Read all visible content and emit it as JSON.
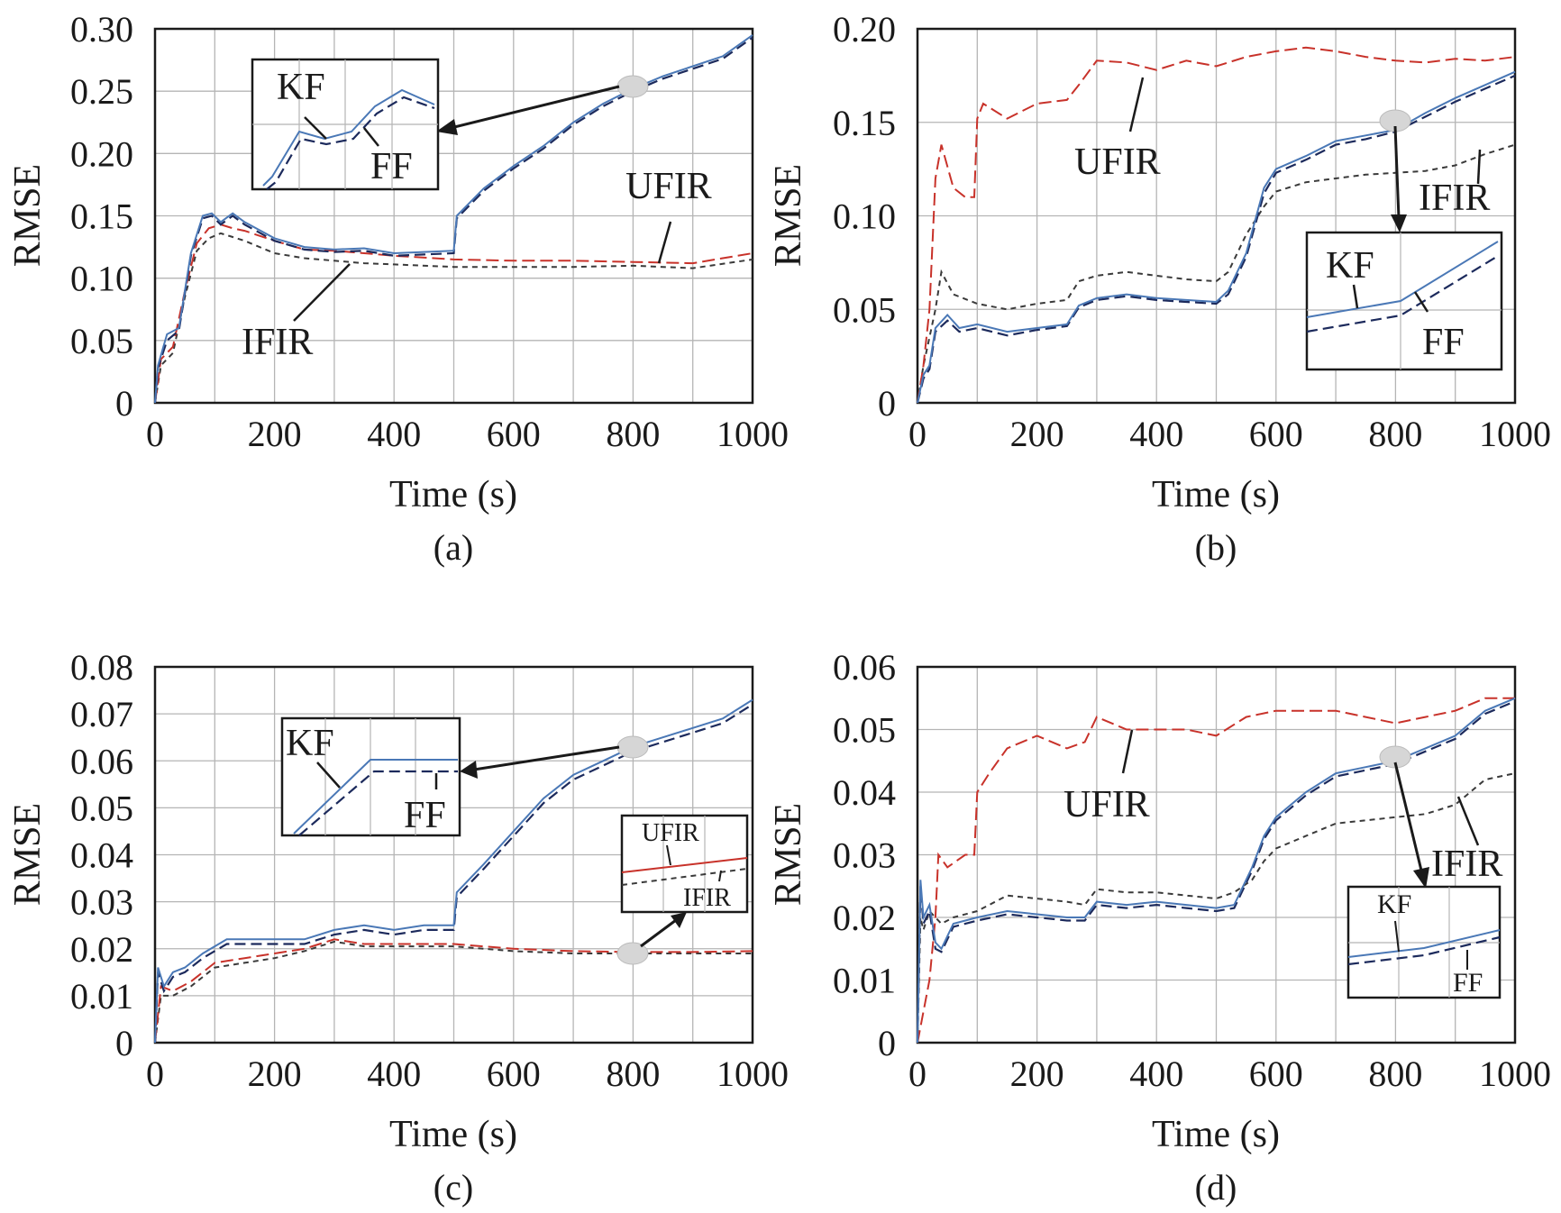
{
  "colors": {
    "kf": "#4a78b6",
    "ff": "#1c2a5c",
    "ufir": "#c8322a",
    "ifir": "#3a3a3a",
    "grid": "#b5b5b5"
  },
  "chart_data": [
    {
      "type": "line",
      "caption": "(a)",
      "xlabel": "Time (s)",
      "ylabel": "RMSE",
      "xlim": [
        0,
        1000
      ],
      "ylim": [
        0,
        0.3
      ],
      "xticks": [
        "0",
        "200",
        "400",
        "600",
        "800",
        "1000"
      ],
      "yticks": [
        "0",
        "0.05",
        "0.10",
        "0.15",
        "0.20",
        "0.25",
        "0.30"
      ],
      "grid": true,
      "series": [
        {
          "name": "KF",
          "x": [
            0,
            5,
            20,
            40,
            60,
            80,
            95,
            110,
            130,
            150,
            200,
            250,
            300,
            350,
            400,
            450,
            500,
            505,
            550,
            600,
            650,
            700,
            750,
            800,
            850,
            900,
            950,
            1000
          ],
          "y": [
            0,
            0.03,
            0.055,
            0.06,
            0.12,
            0.15,
            0.152,
            0.145,
            0.152,
            0.145,
            0.132,
            0.125,
            0.123,
            0.124,
            0.12,
            0.121,
            0.122,
            0.15,
            0.172,
            0.19,
            0.206,
            0.225,
            0.24,
            0.252,
            0.262,
            0.27,
            0.278,
            0.295
          ]
        },
        {
          "name": "FF",
          "x": [
            0,
            5,
            20,
            40,
            60,
            80,
            95,
            110,
            130,
            150,
            200,
            250,
            300,
            350,
            400,
            450,
            500,
            505,
            550,
            600,
            650,
            700,
            750,
            800,
            850,
            900,
            950,
            1000
          ],
          "y": [
            0,
            0.028,
            0.05,
            0.058,
            0.118,
            0.148,
            0.15,
            0.143,
            0.15,
            0.143,
            0.13,
            0.123,
            0.121,
            0.122,
            0.118,
            0.119,
            0.12,
            0.148,
            0.17,
            0.188,
            0.204,
            0.223,
            0.238,
            0.25,
            0.26,
            0.268,
            0.276,
            0.293
          ]
        },
        {
          "name": "UFIR",
          "x": [
            0,
            10,
            30,
            50,
            70,
            90,
            110,
            130,
            150,
            200,
            250,
            300,
            350,
            400,
            500,
            600,
            700,
            800,
            900,
            1000
          ],
          "y": [
            0,
            0.035,
            0.045,
            0.09,
            0.128,
            0.14,
            0.143,
            0.14,
            0.138,
            0.13,
            0.123,
            0.122,
            0.12,
            0.118,
            0.115,
            0.114,
            0.114,
            0.113,
            0.112,
            0.12
          ]
        },
        {
          "name": "IFIR",
          "x": [
            0,
            10,
            30,
            50,
            70,
            90,
            110,
            130,
            150,
            200,
            250,
            300,
            350,
            400,
            500,
            600,
            700,
            800,
            900,
            1000
          ],
          "y": [
            0,
            0.03,
            0.04,
            0.085,
            0.122,
            0.132,
            0.136,
            0.133,
            0.13,
            0.12,
            0.116,
            0.114,
            0.112,
            0.111,
            0.109,
            0.109,
            0.109,
            0.11,
            0.108,
            0.115
          ]
        }
      ],
      "labels": [
        "UFIR",
        "IFIR"
      ],
      "inset_labels": [
        "KF",
        "FF"
      ]
    },
    {
      "type": "line",
      "caption": "(b)",
      "xlabel": "Time (s)",
      "ylabel": "RMSE",
      "xlim": [
        0,
        1000
      ],
      "ylim": [
        0,
        0.2
      ],
      "xticks": [
        "0",
        "200",
        "400",
        "600",
        "800",
        "1000"
      ],
      "yticks": [
        "0",
        "0.05",
        "0.10",
        "0.15",
        "0.20"
      ],
      "grid": true,
      "series": [
        {
          "name": "KF",
          "x": [
            0,
            10,
            20,
            30,
            50,
            70,
            100,
            150,
            200,
            250,
            270,
            300,
            350,
            400,
            450,
            500,
            520,
            550,
            580,
            600,
            650,
            700,
            750,
            800,
            850,
            900,
            950,
            1000
          ],
          "y": [
            0,
            0.015,
            0.02,
            0.04,
            0.047,
            0.04,
            0.042,
            0.038,
            0.04,
            0.042,
            0.052,
            0.056,
            0.058,
            0.056,
            0.055,
            0.054,
            0.06,
            0.08,
            0.115,
            0.125,
            0.132,
            0.14,
            0.143,
            0.146,
            0.155,
            0.163,
            0.17,
            0.177
          ]
        },
        {
          "name": "FF",
          "x": [
            0,
            10,
            20,
            30,
            50,
            70,
            100,
            150,
            200,
            250,
            270,
            300,
            350,
            400,
            450,
            500,
            520,
            550,
            580,
            600,
            650,
            700,
            750,
            800,
            850,
            900,
            950,
            1000
          ],
          "y": [
            0,
            0.013,
            0.018,
            0.038,
            0.044,
            0.038,
            0.04,
            0.036,
            0.039,
            0.041,
            0.051,
            0.055,
            0.057,
            0.055,
            0.054,
            0.053,
            0.058,
            0.078,
            0.112,
            0.123,
            0.13,
            0.138,
            0.141,
            0.145,
            0.153,
            0.161,
            0.168,
            0.175
          ]
        },
        {
          "name": "UFIR",
          "x": [
            0,
            10,
            20,
            30,
            40,
            60,
            80,
            95,
            100,
            110,
            150,
            200,
            250,
            270,
            300,
            350,
            400,
            450,
            500,
            550,
            600,
            650,
            700,
            750,
            800,
            850,
            900,
            950,
            1000
          ],
          "y": [
            0,
            0.02,
            0.05,
            0.12,
            0.138,
            0.115,
            0.11,
            0.11,
            0.152,
            0.16,
            0.152,
            0.16,
            0.162,
            0.17,
            0.183,
            0.182,
            0.178,
            0.183,
            0.18,
            0.185,
            0.188,
            0.19,
            0.188,
            0.185,
            0.183,
            0.182,
            0.184,
            0.183,
            0.185
          ]
        },
        {
          "name": "IFIR",
          "x": [
            0,
            10,
            20,
            30,
            40,
            60,
            100,
            150,
            200,
            250,
            270,
            300,
            350,
            400,
            450,
            500,
            520,
            550,
            580,
            600,
            650,
            700,
            750,
            800,
            850,
            900,
            950,
            1000
          ],
          "y": [
            0,
            0.02,
            0.035,
            0.05,
            0.07,
            0.058,
            0.053,
            0.05,
            0.053,
            0.055,
            0.065,
            0.068,
            0.07,
            0.068,
            0.066,
            0.065,
            0.07,
            0.09,
            0.105,
            0.113,
            0.118,
            0.12,
            0.122,
            0.123,
            0.124,
            0.127,
            0.133,
            0.138
          ]
        }
      ],
      "labels": [
        "UFIR",
        "IFIR"
      ],
      "inset_labels": [
        "KF",
        "FF"
      ]
    },
    {
      "type": "line",
      "caption": "(c)",
      "xlabel": "Time (s)",
      "ylabel": "RMSE",
      "xlim": [
        0,
        1000
      ],
      "ylim": [
        0,
        0.08
      ],
      "xticks": [
        "0",
        "200",
        "400",
        "600",
        "800",
        "1000"
      ],
      "yticks": [
        "0",
        "0.01",
        "0.02",
        "0.03",
        "0.04",
        "0.05",
        "0.06",
        "0.07",
        "0.08"
      ],
      "grid": true,
      "series": [
        {
          "name": "KF",
          "x": [
            0,
            5,
            15,
            30,
            50,
            80,
            120,
            200,
            250,
            300,
            350,
            400,
            450,
            500,
            505,
            550,
            600,
            650,
            700,
            750,
            800,
            850,
            900,
            950,
            1000
          ],
          "y": [
            0,
            0.016,
            0.012,
            0.015,
            0.016,
            0.019,
            0.022,
            0.022,
            0.022,
            0.024,
            0.025,
            0.024,
            0.025,
            0.025,
            0.032,
            0.038,
            0.045,
            0.052,
            0.057,
            0.06,
            0.063,
            0.065,
            0.067,
            0.069,
            0.073
          ]
        },
        {
          "name": "FF",
          "x": [
            0,
            5,
            15,
            30,
            50,
            80,
            120,
            200,
            250,
            300,
            350,
            400,
            450,
            500,
            505,
            550,
            600,
            650,
            700,
            750,
            800,
            850,
            900,
            950,
            1000
          ],
          "y": [
            0,
            0.015,
            0.011,
            0.014,
            0.015,
            0.018,
            0.021,
            0.021,
            0.021,
            0.023,
            0.024,
            0.023,
            0.024,
            0.024,
            0.031,
            0.037,
            0.044,
            0.051,
            0.056,
            0.059,
            0.062,
            0.064,
            0.066,
            0.068,
            0.072
          ]
        },
        {
          "name": "UFIR",
          "x": [
            0,
            10,
            30,
            60,
            100,
            150,
            200,
            250,
            300,
            350,
            400,
            450,
            500,
            600,
            700,
            800,
            900,
            1000
          ],
          "y": [
            0,
            0.012,
            0.011,
            0.013,
            0.017,
            0.018,
            0.019,
            0.02,
            0.022,
            0.021,
            0.021,
            0.021,
            0.021,
            0.02,
            0.0195,
            0.0193,
            0.0193,
            0.0195
          ]
        },
        {
          "name": "IFIR",
          "x": [
            0,
            10,
            30,
            60,
            100,
            150,
            200,
            250,
            300,
            350,
            400,
            450,
            500,
            600,
            700,
            800,
            900,
            1000
          ],
          "y": [
            0,
            0.01,
            0.01,
            0.012,
            0.016,
            0.017,
            0.018,
            0.0195,
            0.0215,
            0.0205,
            0.0205,
            0.0205,
            0.0205,
            0.0195,
            0.019,
            0.019,
            0.019,
            0.019
          ]
        }
      ],
      "labels": [],
      "inset_labels": [
        "KF",
        "FF"
      ],
      "inset2_labels": [
        "UFIR",
        "IFIR"
      ]
    },
    {
      "type": "line",
      "caption": "(d)",
      "xlabel": "Time (s)",
      "ylabel": "RMSE",
      "xlim": [
        0,
        1000
      ],
      "ylim": [
        0,
        0.06
      ],
      "xticks": [
        "0",
        "200",
        "400",
        "600",
        "800",
        "1000"
      ],
      "yticks": [
        "0",
        "0.01",
        "0.02",
        "0.03",
        "0.04",
        "0.05",
        "0.06"
      ],
      "grid": true,
      "series": [
        {
          "name": "KF",
          "x": [
            0,
            5,
            10,
            20,
            30,
            40,
            60,
            100,
            150,
            200,
            250,
            280,
            300,
            350,
            400,
            450,
            500,
            530,
            560,
            580,
            600,
            650,
            700,
            750,
            800,
            850,
            900,
            950,
            1000
          ],
          "y": [
            0,
            0.026,
            0.02,
            0.022,
            0.016,
            0.015,
            0.019,
            0.02,
            0.021,
            0.0205,
            0.02,
            0.02,
            0.0225,
            0.022,
            0.0225,
            0.022,
            0.0215,
            0.022,
            0.028,
            0.033,
            0.036,
            0.04,
            0.043,
            0.044,
            0.045,
            0.047,
            0.049,
            0.053,
            0.055
          ]
        },
        {
          "name": "FF",
          "x": [
            0,
            5,
            10,
            20,
            30,
            40,
            60,
            100,
            150,
            200,
            250,
            280,
            300,
            350,
            400,
            450,
            500,
            530,
            560,
            580,
            600,
            650,
            700,
            750,
            800,
            850,
            900,
            950,
            1000
          ],
          "y": [
            0,
            0.025,
            0.019,
            0.021,
            0.015,
            0.0145,
            0.0185,
            0.0195,
            0.0205,
            0.02,
            0.0195,
            0.0195,
            0.022,
            0.0215,
            0.022,
            0.0215,
            0.021,
            0.0215,
            0.0275,
            0.0325,
            0.0355,
            0.0395,
            0.0425,
            0.0435,
            0.0445,
            0.0465,
            0.0485,
            0.0525,
            0.0545
          ]
        },
        {
          "name": "UFIR",
          "x": [
            0,
            20,
            30,
            35,
            50,
            80,
            95,
            100,
            120,
            150,
            200,
            250,
            280,
            300,
            350,
            400,
            450,
            500,
            550,
            600,
            650,
            700,
            750,
            800,
            850,
            900,
            950,
            1000
          ],
          "y": [
            0,
            0.01,
            0.02,
            0.03,
            0.028,
            0.03,
            0.03,
            0.04,
            0.043,
            0.047,
            0.049,
            0.047,
            0.048,
            0.052,
            0.05,
            0.05,
            0.05,
            0.049,
            0.052,
            0.053,
            0.053,
            0.053,
            0.052,
            0.051,
            0.052,
            0.053,
            0.055,
            0.055
          ]
        },
        {
          "name": "IFIR",
          "x": [
            0,
            5,
            10,
            20,
            40,
            60,
            100,
            150,
            200,
            250,
            280,
            300,
            350,
            400,
            450,
            500,
            530,
            560,
            580,
            600,
            650,
            700,
            750,
            800,
            850,
            900,
            950,
            1000
          ],
          "y": [
            0,
            0.02,
            0.018,
            0.021,
            0.019,
            0.02,
            0.021,
            0.0235,
            0.023,
            0.0225,
            0.022,
            0.0245,
            0.024,
            0.024,
            0.0235,
            0.023,
            0.024,
            0.026,
            0.029,
            0.031,
            0.033,
            0.035,
            0.0355,
            0.036,
            0.0365,
            0.038,
            0.042,
            0.043
          ]
        }
      ],
      "labels": [
        "UFIR",
        "IFIR"
      ],
      "inset_labels": [
        "KF",
        "FF"
      ]
    }
  ]
}
